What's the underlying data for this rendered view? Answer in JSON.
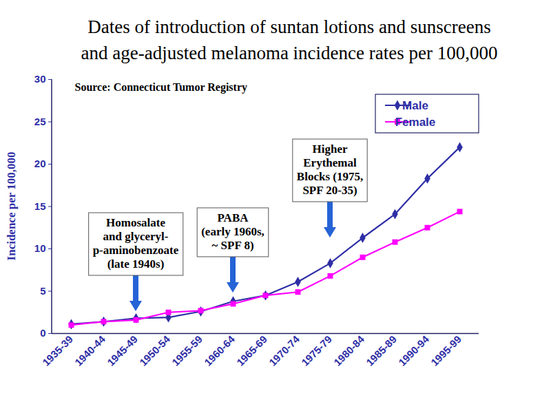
{
  "chart_data": {
    "type": "line",
    "title": [
      "Dates of introduction of suntan lotions and sunscreens",
      "and age-adjusted melanoma incidence rates per 100,000"
    ],
    "source": "Source: Connecticut Tumor Registry",
    "y_label": "Incidence per 100,000",
    "categories": [
      "1935-39",
      "1940-44",
      "1945-49",
      "1950-54",
      "1955-59",
      "1960-64",
      "1965-69",
      "1970-74",
      "1975-79",
      "1980-84",
      "1985-89",
      "1990-94",
      "1995-99"
    ],
    "series": [
      {
        "name": "Male",
        "color": "#2e2ea6",
        "marker": "diamond",
        "values": [
          1.1,
          1.4,
          1.8,
          1.9,
          2.6,
          3.8,
          4.5,
          6.1,
          8.3,
          11.3,
          14.1,
          18.3,
          22.0
        ]
      },
      {
        "name": "Female",
        "color": "#ff00ff",
        "marker": "square",
        "values": [
          1.0,
          1.4,
          1.6,
          2.5,
          2.7,
          3.5,
          4.5,
          4.9,
          6.8,
          9.0,
          10.8,
          12.5,
          14.4
        ]
      }
    ],
    "ylim": [
      0,
      30
    ],
    "yticks": [
      0,
      5,
      10,
      15,
      20,
      25,
      30
    ],
    "legend": "top-right",
    "annotations": [
      {
        "lines": [
          "Homosalate",
          "and glyceryl-",
          "p-aminobenzoate",
          "(late 1940s)"
        ],
        "x": "1945-49",
        "y": 2.6
      },
      {
        "lines": [
          "PABA",
          "(early 1960s,",
          "~ SPF 8)"
        ],
        "x": "1960-64",
        "y": 4.8
      },
      {
        "lines": [
          "Higher",
          "Erythemal",
          "Blocks (1975,",
          "SPF 20-35)"
        ],
        "x": "1975-79",
        "y": 11.3
      }
    ]
  }
}
